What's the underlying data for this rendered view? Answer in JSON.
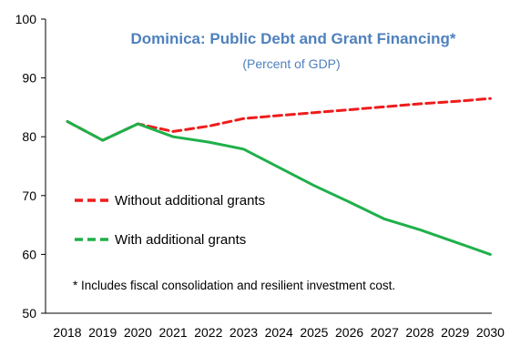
{
  "chart_data": {
    "type": "line",
    "title": "Dominica: Public Debt and Grant Financing*",
    "subtitle": "(Percent of GDP)",
    "x": [
      "2018",
      "2019",
      "2020",
      "2021",
      "2022",
      "2023",
      "2024",
      "2025",
      "2026",
      "2027",
      "2028",
      "2029",
      "2030"
    ],
    "ylim": [
      50,
      100
    ],
    "yticks": [
      "50",
      "60",
      "70",
      "80",
      "90",
      "100"
    ],
    "grid": false,
    "legend_position": "middle-left",
    "series": [
      {
        "name": "Without additional grants",
        "style": "dashed",
        "color": "#ee1c1c",
        "values": [
          82.6,
          79.4,
          82.2,
          80.9,
          81.8,
          83.1,
          83.6,
          84.1,
          84.6,
          85.1,
          85.6,
          86.0,
          86.5
        ]
      },
      {
        "name": "With additional grants",
        "style": "solid",
        "color": "#1fb04a",
        "values": [
          82.6,
          79.4,
          82.2,
          80.0,
          79.1,
          77.9,
          74.8,
          71.7,
          68.9,
          66.0,
          64.2,
          62.1,
          60.0
        ]
      }
    ],
    "legend_entries": [
      "Without additional grants",
      "With additional grants"
    ],
    "annotation": "* Includes fiscal consolidation and resilient investment cost.",
    "colors": {
      "title": "#4f81bd",
      "subtitle": "#4f81bd",
      "axis": "#000000"
    }
  }
}
